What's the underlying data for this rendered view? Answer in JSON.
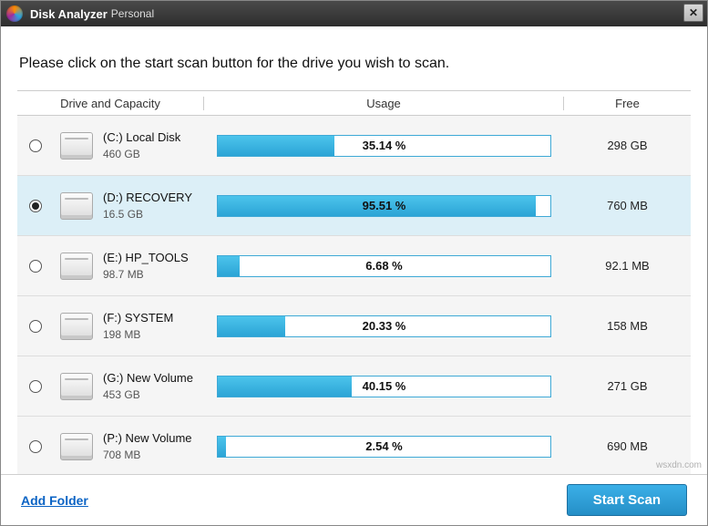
{
  "window": {
    "title": "Disk Analyzer",
    "title_sub": "Personal"
  },
  "instruction": "Please click on the start scan button for the drive you wish to scan.",
  "headers": {
    "drive": "Drive and Capacity",
    "usage": "Usage",
    "free": "Free"
  },
  "colors": {
    "bar_fill": "#2ba4d6",
    "bar_border": "#3ea9d6",
    "row_selected_bg": "#dceff7",
    "row_bg": "#f5f5f5",
    "link": "#0b63c4",
    "button_bg": "#258fc6"
  },
  "drives": [
    {
      "name": "(C:)  Local Disk",
      "capacity": "460 GB",
      "usage_pct": 35.14,
      "usage_label": "35.14 %",
      "free": "298 GB",
      "selected": false
    },
    {
      "name": "(D:)  RECOVERY",
      "capacity": "16.5 GB",
      "usage_pct": 95.51,
      "usage_label": "95.51 %",
      "free": "760 MB",
      "selected": true
    },
    {
      "name": "(E:)  HP_TOOLS",
      "capacity": "98.7 MB",
      "usage_pct": 6.68,
      "usage_label": "6.68 %",
      "free": "92.1 MB",
      "selected": false
    },
    {
      "name": "(F:)  SYSTEM",
      "capacity": "198 MB",
      "usage_pct": 20.33,
      "usage_label": "20.33 %",
      "free": "158 MB",
      "selected": false
    },
    {
      "name": "(G:)  New Volume",
      "capacity": "453 GB",
      "usage_pct": 40.15,
      "usage_label": "40.15 %",
      "free": "271 GB",
      "selected": false
    },
    {
      "name": "(P:)  New Volume",
      "capacity": "708 MB",
      "usage_pct": 2.54,
      "usage_label": "2.54 %",
      "free": "690 MB",
      "selected": false
    }
  ],
  "footer": {
    "add_folder": "Add Folder",
    "start_scan": "Start Scan"
  },
  "watermark": "wsxdn.com"
}
